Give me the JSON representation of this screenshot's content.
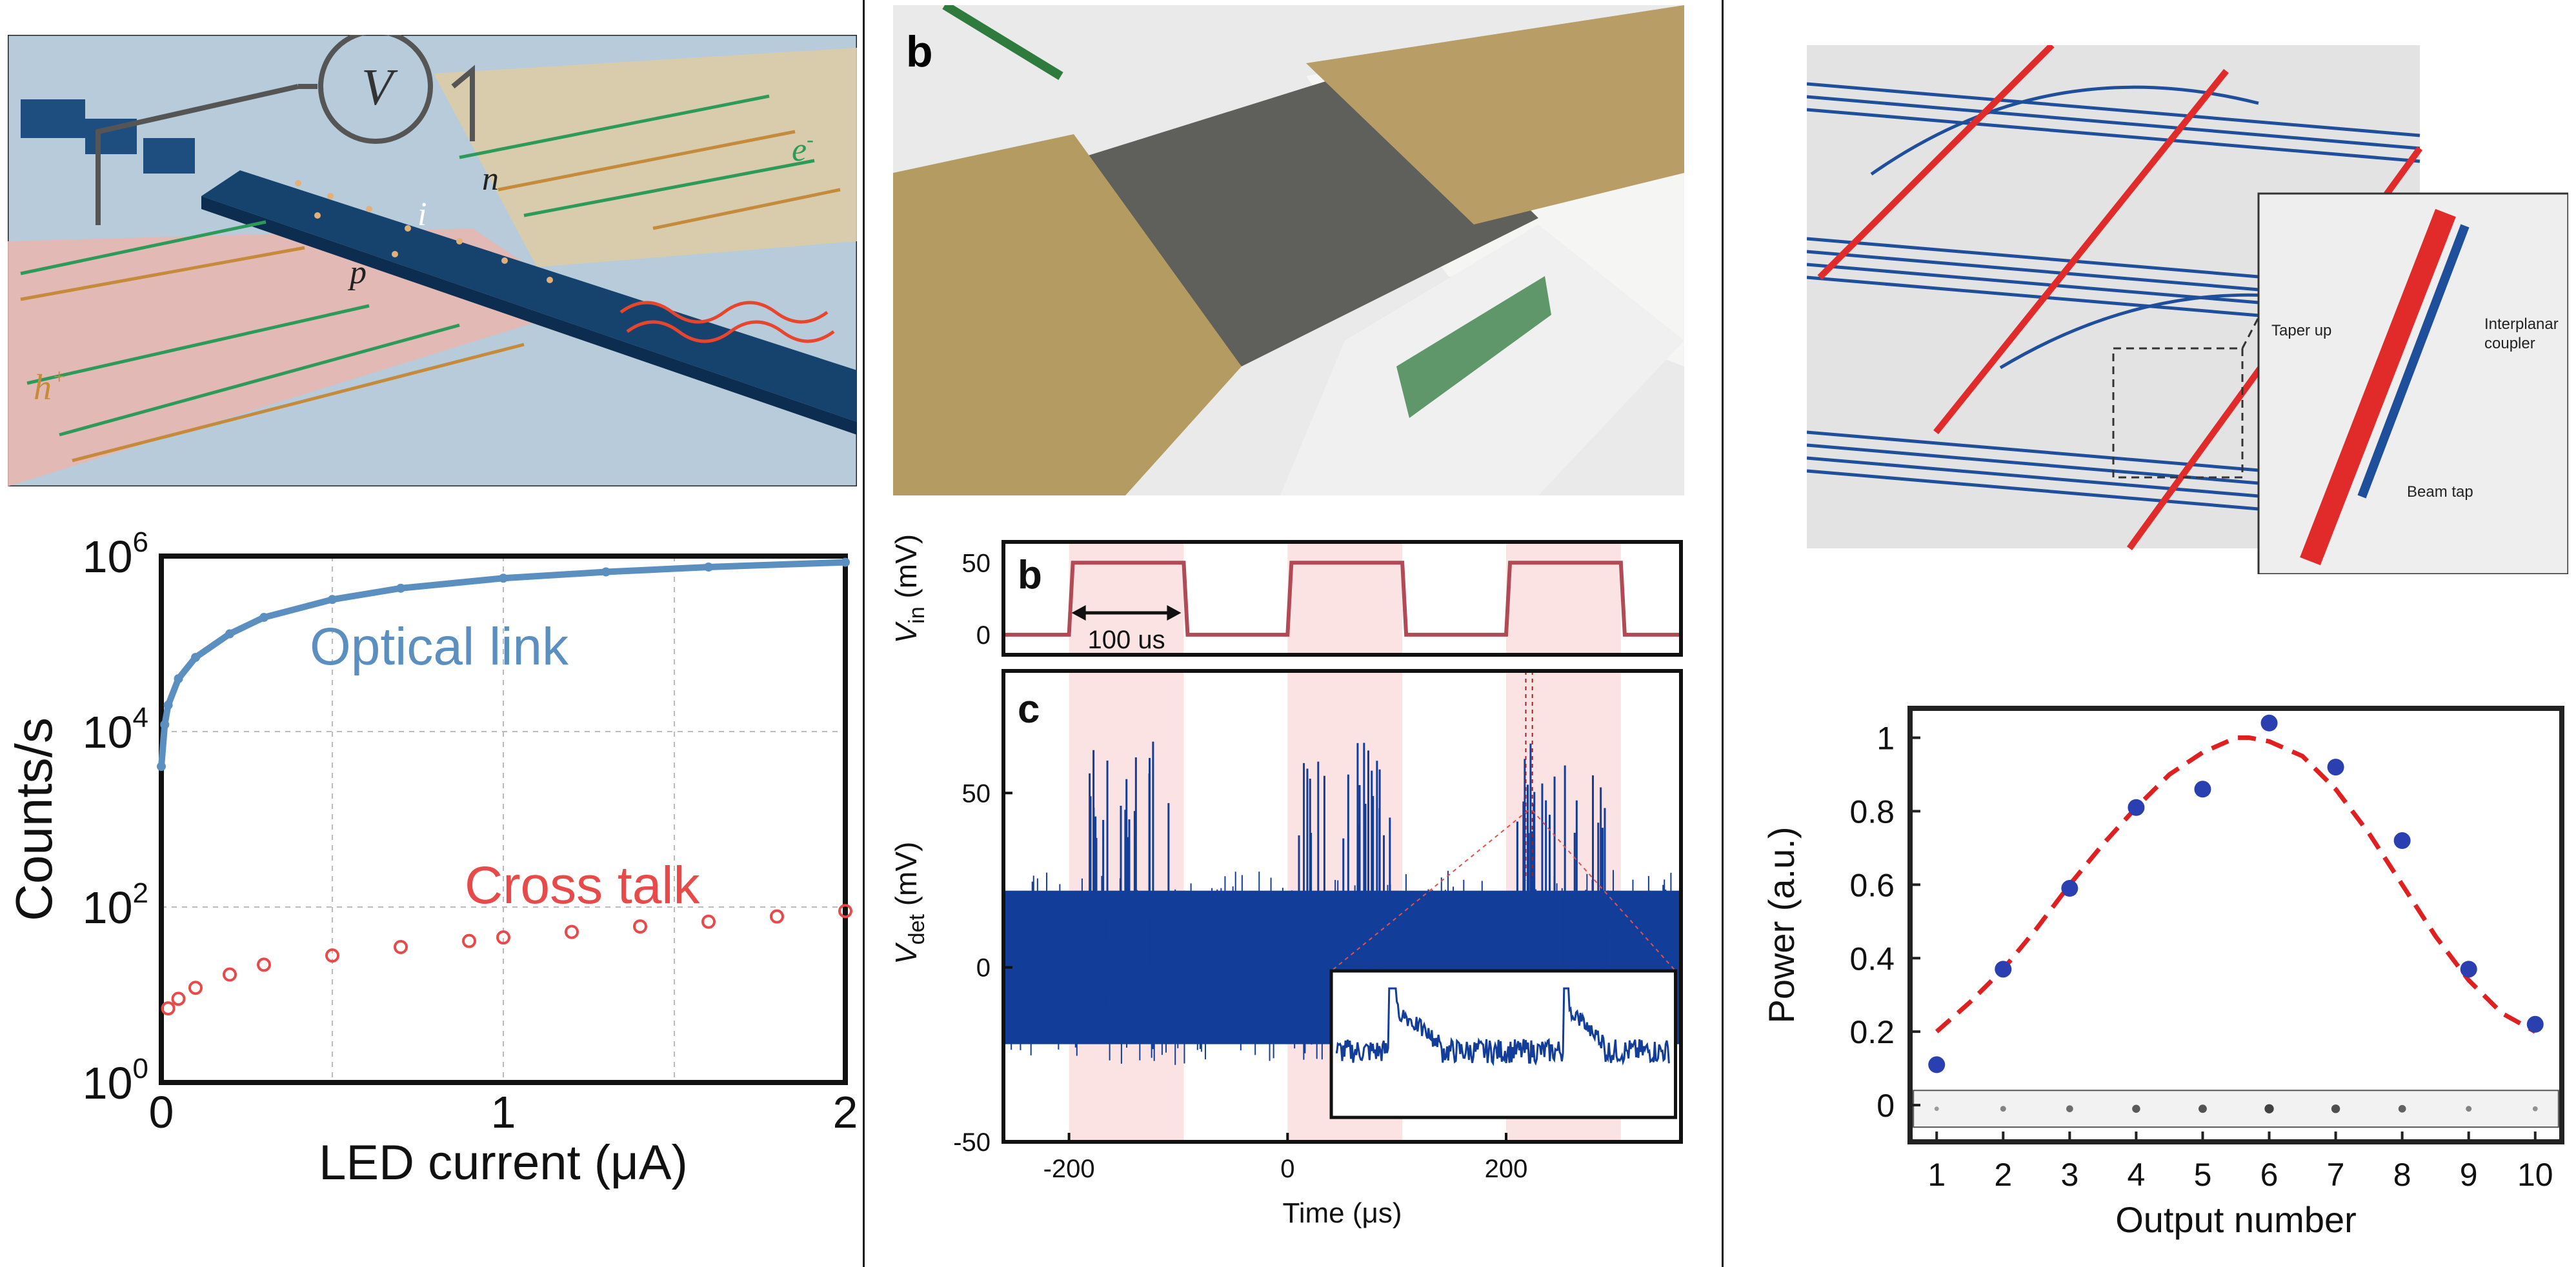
{
  "panel_pin": {
    "voltmeter": "V",
    "labels": {
      "n": "n",
      "i": "i",
      "p": "p",
      "e": "e",
      "e_sup": "-",
      "h": "h",
      "h_sup": "+"
    }
  },
  "panel_spad": {
    "letter": "b"
  },
  "panel_pulse": {
    "letter": "b",
    "ylabel_main": "V",
    "ylabel_sub": "in",
    "ylabel_unit": " (mV)",
    "yticks": [
      "50",
      "0"
    ],
    "annotation": "100 us"
  },
  "panel_det": {
    "letter": "c",
    "ylabel_main": "V",
    "ylabel_sub": "det",
    "ylabel_unit": " (mV)",
    "yticks": [
      "50",
      "0",
      "-50"
    ],
    "xticks": [
      "-200",
      "0",
      "200"
    ],
    "xlabel": "Time (μs)"
  },
  "panel_photonic": {
    "inset_labels": {
      "taper": "Taper up",
      "interplanar_1": "Interplanar",
      "interplanar_2": "coupler",
      "beam": "Beam tap"
    }
  },
  "chart_data": [
    {
      "type": "scatter",
      "xlabel": "LED current (μA)",
      "ylabel": "Counts/s",
      "xlim": [
        0,
        2
      ],
      "ylim": [
        1,
        1000000
      ],
      "yscale": "log",
      "grid": true,
      "xticks": [
        "0",
        "1",
        "2"
      ],
      "yticks": [
        {
          "base": "10",
          "exp": "0"
        },
        {
          "base": "10",
          "exp": "2"
        },
        {
          "base": "10",
          "exp": "4"
        },
        {
          "base": "10",
          "exp": "6"
        }
      ],
      "annotations": [
        "Optical link",
        "Cross talk"
      ],
      "colors": {
        "optical": "#5a8fc0",
        "cross": "#e84a4a"
      },
      "series": [
        {
          "x": [
            0.0,
            0.01,
            0.02,
            0.05,
            0.1,
            0.2,
            0.3,
            0.5,
            0.7,
            1.0,
            1.3,
            1.6,
            2.0
          ],
          "y": [
            4000,
            12000,
            20000,
            40000,
            70000,
            130000,
            200000,
            320000,
            430000,
            560000,
            660000,
            750000,
            850000
          ]
        },
        {
          "x": [
            0.02,
            0.05,
            0.1,
            0.2,
            0.3,
            0.5,
            0.7,
            0.9,
            1.0,
            1.2,
            1.4,
            1.6,
            1.8,
            2.0
          ],
          "y": [
            7,
            9,
            12,
            17,
            22,
            28,
            35,
            41,
            45,
            52,
            60,
            68,
            78,
            90
          ]
        }
      ]
    },
    {
      "type": "scatter",
      "xlabel": "Output number",
      "ylabel": "Power (a.u.)",
      "xlim": [
        0.6,
        10.4
      ],
      "ylim": [
        -0.1,
        1.08
      ],
      "xticks": [
        "1",
        "2",
        "3",
        "4",
        "5",
        "6",
        "7",
        "8",
        "9",
        "10"
      ],
      "yticks": [
        "0",
        "0.2",
        "0.4",
        "0.6",
        "0.8",
        "1"
      ],
      "colors": {
        "points": "#2a3fb0",
        "fit": "#e02020"
      },
      "series": [
        {
          "x": [
            1,
            2,
            3,
            4,
            5,
            6,
            7,
            8,
            9,
            10
          ],
          "y": [
            0.11,
            0.37,
            0.59,
            0.81,
            0.86,
            1.04,
            0.92,
            0.72,
            0.37,
            0.22
          ]
        },
        {
          "x": [
            1,
            1.5,
            2,
            2.5,
            3,
            3.5,
            4,
            4.5,
            5,
            5.5,
            5.7,
            6,
            6.5,
            7,
            7.5,
            8,
            8.5,
            9,
            9.5,
            10
          ],
          "y": [
            0.2,
            0.28,
            0.37,
            0.48,
            0.6,
            0.71,
            0.81,
            0.9,
            0.96,
            1.0,
            1.0,
            0.99,
            0.95,
            0.86,
            0.74,
            0.6,
            0.46,
            0.34,
            0.25,
            0.2
          ]
        }
      ]
    }
  ]
}
